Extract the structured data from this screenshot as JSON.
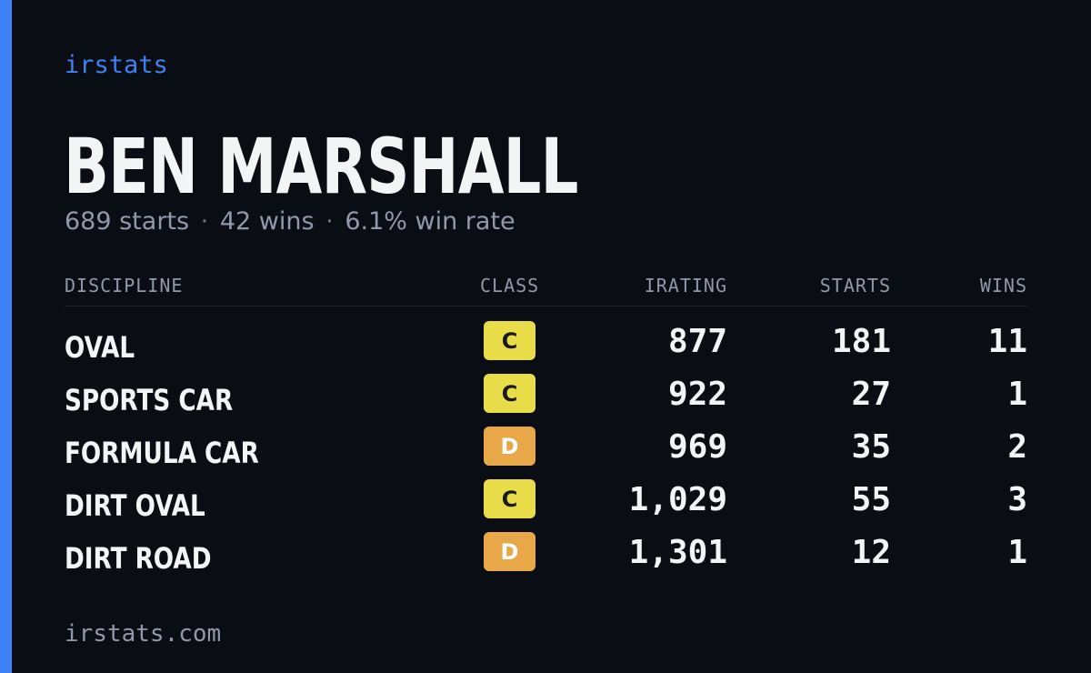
{
  "brand": "irstats",
  "player": {
    "name": "BEN MARSHALL",
    "starts_text": "689 starts",
    "wins_text": "42 wins",
    "winrate_text": "6.1% win rate",
    "separator": "·"
  },
  "table": {
    "headers": {
      "discipline": "DISCIPLINE",
      "class": "CLASS",
      "irating": "IRATING",
      "starts": "STARTS",
      "wins": "WINS"
    },
    "rows": [
      {
        "discipline": "OVAL",
        "class": "C",
        "irating": "877",
        "starts": "181",
        "wins": "11"
      },
      {
        "discipline": "SPORTS CAR",
        "class": "C",
        "irating": "922",
        "starts": "27",
        "wins": "1"
      },
      {
        "discipline": "FORMULA CAR",
        "class": "D",
        "irating": "969",
        "starts": "35",
        "wins": "2"
      },
      {
        "discipline": "DIRT OVAL",
        "class": "C",
        "irating": "1,029",
        "starts": "55",
        "wins": "3"
      },
      {
        "discipline": "DIRT ROAD",
        "class": "D",
        "irating": "1,301",
        "starts": "12",
        "wins": "1"
      }
    ]
  },
  "class_colors": {
    "C": {
      "bg": "#e8dc48",
      "fg": "#1a1a1a"
    },
    "D": {
      "bg": "#e8a848",
      "fg": "#ffffff"
    }
  },
  "colors": {
    "accent": "#3b82f6",
    "background": "#0b0d14"
  },
  "footer": "irstats.com"
}
